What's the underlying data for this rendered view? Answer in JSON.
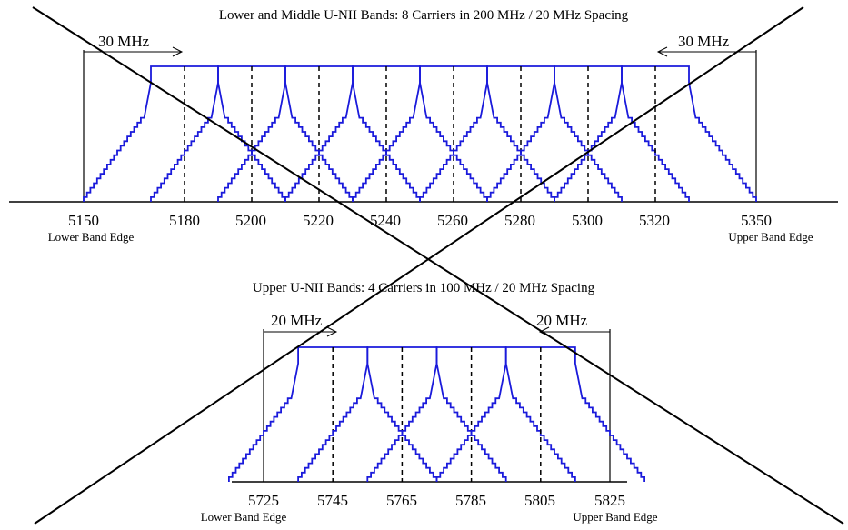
{
  "panels": [
    {
      "title": "Lower and Middle U-NII Bands: 8 Carriers in 200 MHz / 20 MHz Spacing",
      "tick_labels": [
        "5150",
        "5180",
        "5200",
        "5220",
        "5240",
        "5260",
        "5280",
        "5300",
        "5320",
        "5350"
      ],
      "lower_edge_label": "Lower Band Edge",
      "upper_edge_label": "Upper Band Edge",
      "left_span_label": "30 MHz",
      "right_span_label": "30 MHz",
      "carrier_centers": [
        5180,
        5200,
        5220,
        5240,
        5260,
        5280,
        5300,
        5320
      ],
      "band_edges": [
        5150,
        5350
      ]
    },
    {
      "title": "Upper U-NII Bands: 4 Carriers in 100 MHz / 20 MHz Spacing",
      "tick_labels": [
        "5725",
        "5745",
        "5765",
        "5785",
        "5805",
        "5825"
      ],
      "lower_edge_label": "Lower Band Edge",
      "upper_edge_label": "Upper Band Edge",
      "left_span_label": "20 MHz",
      "right_span_label": "20 MHz",
      "carrier_centers": [
        5745,
        5765,
        5785,
        5805
      ],
      "band_edges": [
        5725,
        5825
      ]
    }
  ],
  "colors": {
    "carrier_mask": "#1a1adb",
    "axis": "#000000",
    "cross_out": "#000000"
  }
}
